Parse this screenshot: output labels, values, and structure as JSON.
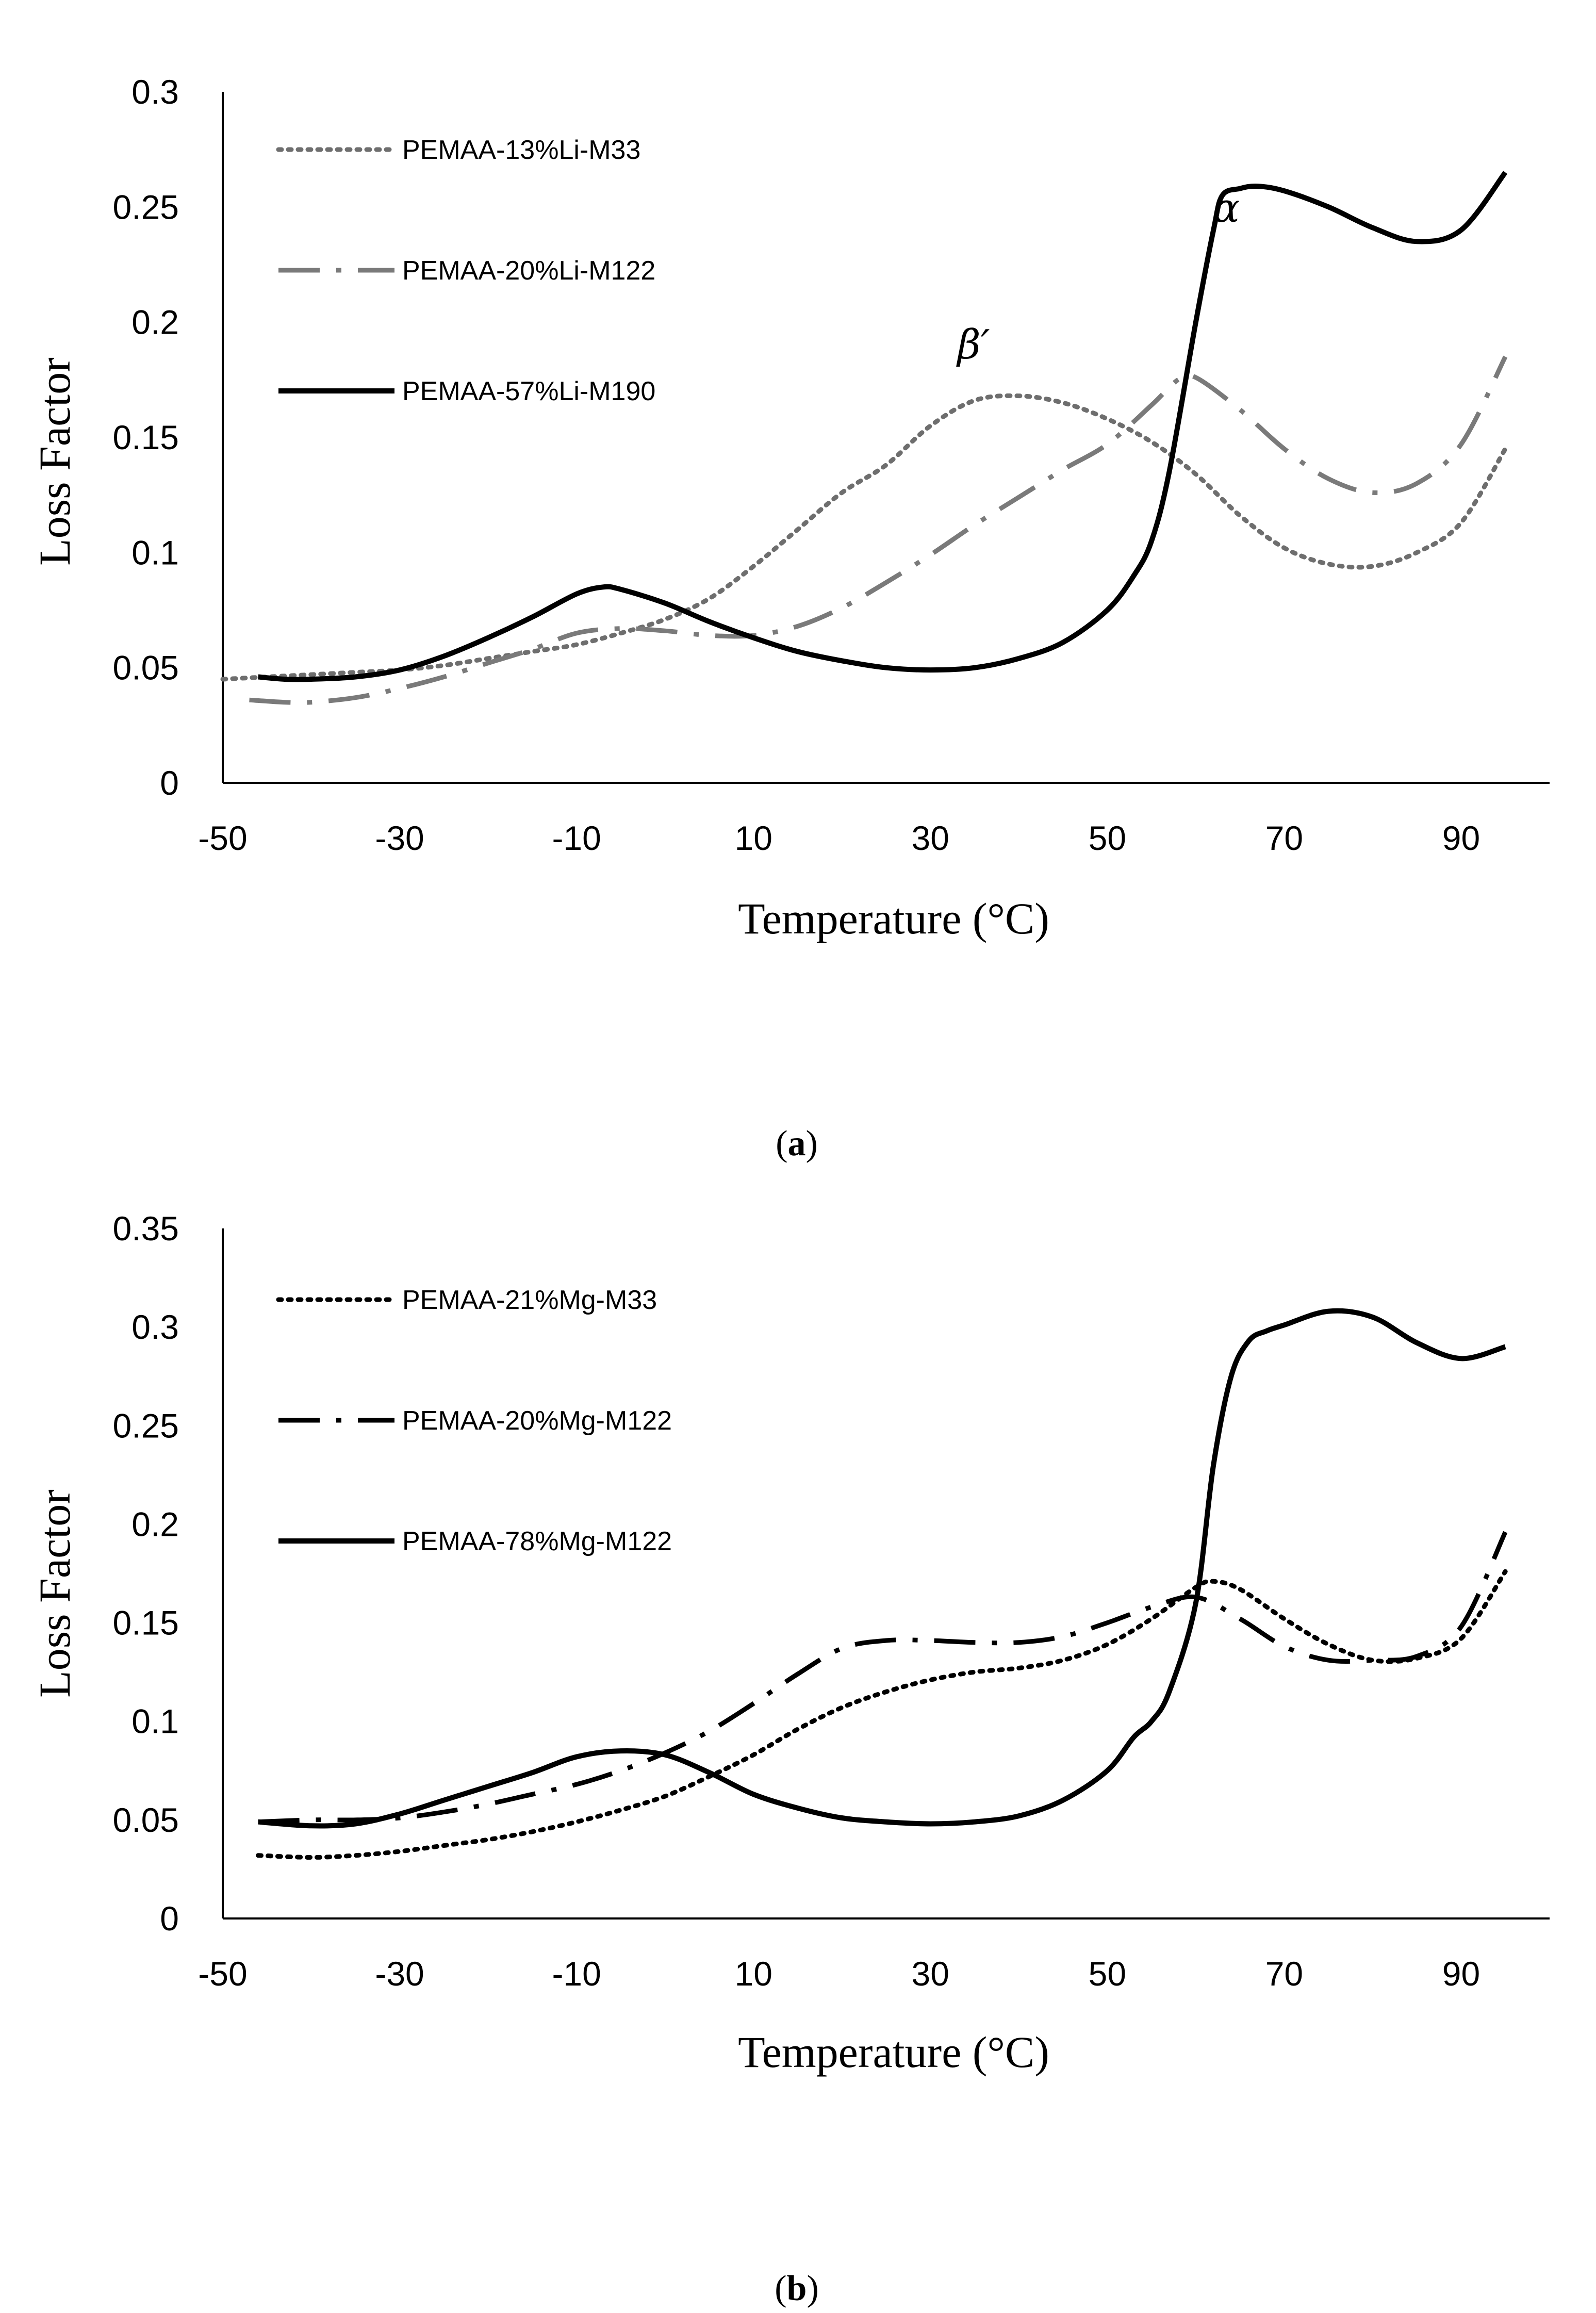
{
  "chart_data": [
    {
      "type": "line",
      "panel_label": "a",
      "xlabel": "Temperature (°C)",
      "ylabel": "Loss Factor",
      "xlim": [
        -50,
        100
      ],
      "ylim": [
        0,
        0.3
      ],
      "xticks": [
        "-50",
        "-30",
        "-10",
        "10",
        "30",
        "50",
        "70",
        "90"
      ],
      "yticks": [
        "0",
        "0.05",
        "0.1",
        "0.15",
        "0.2",
        "0.25",
        "0.3"
      ],
      "legend_position": "top-left",
      "annotations": [
        {
          "text": "α",
          "x": 63,
          "y": 0.265
        },
        {
          "text": "β′",
          "x": 33,
          "y": 0.184
        }
      ],
      "series": [
        {
          "name": "PEMAA-13%Li-M33",
          "style": "dotted",
          "color": "#6e6e6e",
          "x": [
            -50,
            -45,
            -40,
            -35,
            -30,
            -25,
            -20,
            -15,
            -10,
            -5,
            0,
            5,
            10,
            15,
            20,
            25,
            30,
            35,
            40,
            45,
            50,
            55,
            60,
            65,
            70,
            75,
            80,
            85,
            90,
            95
          ],
          "y": [
            0.045,
            0.046,
            0.047,
            0.048,
            0.049,
            0.051,
            0.054,
            0.057,
            0.06,
            0.065,
            0.071,
            0.08,
            0.094,
            0.11,
            0.126,
            0.138,
            0.155,
            0.166,
            0.168,
            0.165,
            0.158,
            0.148,
            0.134,
            0.116,
            0.102,
            0.095,
            0.094,
            0.1,
            0.113,
            0.145
          ]
        },
        {
          "name": "PEMAA-20%Li-M122",
          "style": "dash-dot",
          "color": "#7a7a7a",
          "x": [
            -47,
            -43,
            -40,
            -35,
            -30,
            -25,
            -20,
            -15,
            -10,
            -5,
            0,
            5,
            10,
            15,
            20,
            25,
            30,
            35,
            40,
            45,
            50,
            55,
            58,
            60,
            65,
            70,
            75,
            80,
            85,
            90,
            95
          ],
          "y": [
            0.036,
            0.035,
            0.035,
            0.037,
            0.041,
            0.046,
            0.052,
            0.058,
            0.065,
            0.067,
            0.066,
            0.064,
            0.064,
            0.068,
            0.076,
            0.087,
            0.099,
            0.112,
            0.124,
            0.136,
            0.147,
            0.164,
            0.175,
            0.176,
            0.162,
            0.145,
            0.132,
            0.126,
            0.13,
            0.147,
            0.185
          ]
        },
        {
          "name": "PEMAA-57%Li-M190",
          "style": "solid",
          "color": "#000000",
          "x": [
            -46,
            -43,
            -40,
            -35,
            -30,
            -25,
            -20,
            -15,
            -10,
            -7,
            -5,
            0,
            5,
            10,
            15,
            20,
            25,
            30,
            35,
            40,
            45,
            50,
            53,
            55,
            57,
            60,
            62,
            63,
            65,
            67,
            70,
            75,
            80,
            85,
            90,
            95
          ],
          "y": [
            0.046,
            0.045,
            0.045,
            0.046,
            0.049,
            0.055,
            0.063,
            0.072,
            0.082,
            0.085,
            0.084,
            0.078,
            0.07,
            0.063,
            0.057,
            0.053,
            0.05,
            0.049,
            0.05,
            0.054,
            0.061,
            0.075,
            0.09,
            0.105,
            0.135,
            0.2,
            0.24,
            0.255,
            0.258,
            0.259,
            0.257,
            0.25,
            0.241,
            0.235,
            0.24,
            0.265
          ]
        }
      ]
    },
    {
      "type": "line",
      "panel_label": "b",
      "xlabel": "Temperature (°C)",
      "ylabel": "Loss Factor",
      "xlim": [
        -50,
        100
      ],
      "ylim": [
        0,
        0.35
      ],
      "xticks": [
        "-50",
        "-30",
        "-10",
        "10",
        "30",
        "50",
        "70",
        "90"
      ],
      "yticks": [
        "0",
        "0.05",
        "0.1",
        "0.15",
        "0.2",
        "0.25",
        "0.3",
        "0.35"
      ],
      "legend_position": "top-left",
      "series": [
        {
          "name": "PEMAA-21%Mg-M33",
          "style": "dotted",
          "color": "#000000",
          "x": [
            -46,
            -40,
            -35,
            -30,
            -25,
            -20,
            -15,
            -10,
            -5,
            0,
            5,
            10,
            15,
            20,
            25,
            30,
            35,
            40,
            45,
            50,
            55,
            60,
            62,
            65,
            70,
            75,
            80,
            85,
            90,
            95
          ],
          "y": [
            0.032,
            0.031,
            0.032,
            0.034,
            0.037,
            0.04,
            0.044,
            0.049,
            0.055,
            0.062,
            0.072,
            0.083,
            0.096,
            0.107,
            0.115,
            0.121,
            0.125,
            0.127,
            0.131,
            0.139,
            0.152,
            0.168,
            0.171,
            0.167,
            0.152,
            0.139,
            0.131,
            0.132,
            0.142,
            0.176
          ]
        },
        {
          "name": "PEMAA-20%Mg-M122",
          "style": "dash-dot",
          "color": "#000000",
          "x": [
            -46,
            -40,
            -35,
            -30,
            -25,
            -20,
            -15,
            -10,
            -5,
            0,
            5,
            10,
            15,
            20,
            25,
            30,
            35,
            40,
            45,
            50,
            55,
            60,
            65,
            70,
            75,
            80,
            85,
            90,
            95
          ],
          "y": [
            0.049,
            0.05,
            0.05,
            0.051,
            0.054,
            0.058,
            0.063,
            0.068,
            0.075,
            0.084,
            0.095,
            0.109,
            0.124,
            0.137,
            0.141,
            0.141,
            0.14,
            0.14,
            0.143,
            0.15,
            0.158,
            0.163,
            0.152,
            0.138,
            0.131,
            0.131,
            0.133,
            0.148,
            0.196
          ]
        },
        {
          "name": "PEMAA-78%Mg-M122",
          "style": "solid",
          "color": "#000000",
          "x": [
            -46,
            -40,
            -35,
            -30,
            -25,
            -20,
            -15,
            -10,
            -5,
            0,
            5,
            10,
            15,
            20,
            25,
            30,
            35,
            40,
            45,
            50,
            53,
            55,
            57,
            60,
            62,
            64,
            66,
            68,
            70,
            75,
            80,
            85,
            90,
            95
          ],
          "y": [
            0.049,
            0.047,
            0.048,
            0.053,
            0.06,
            0.067,
            0.074,
            0.082,
            0.085,
            0.083,
            0.074,
            0.063,
            0.056,
            0.051,
            0.049,
            0.048,
            0.049,
            0.052,
            0.06,
            0.075,
            0.092,
            0.1,
            0.115,
            0.16,
            0.23,
            0.275,
            0.293,
            0.298,
            0.301,
            0.308,
            0.305,
            0.292,
            0.284,
            0.29
          ]
        }
      ]
    }
  ],
  "captions": {
    "a": "a",
    "b": "b"
  }
}
